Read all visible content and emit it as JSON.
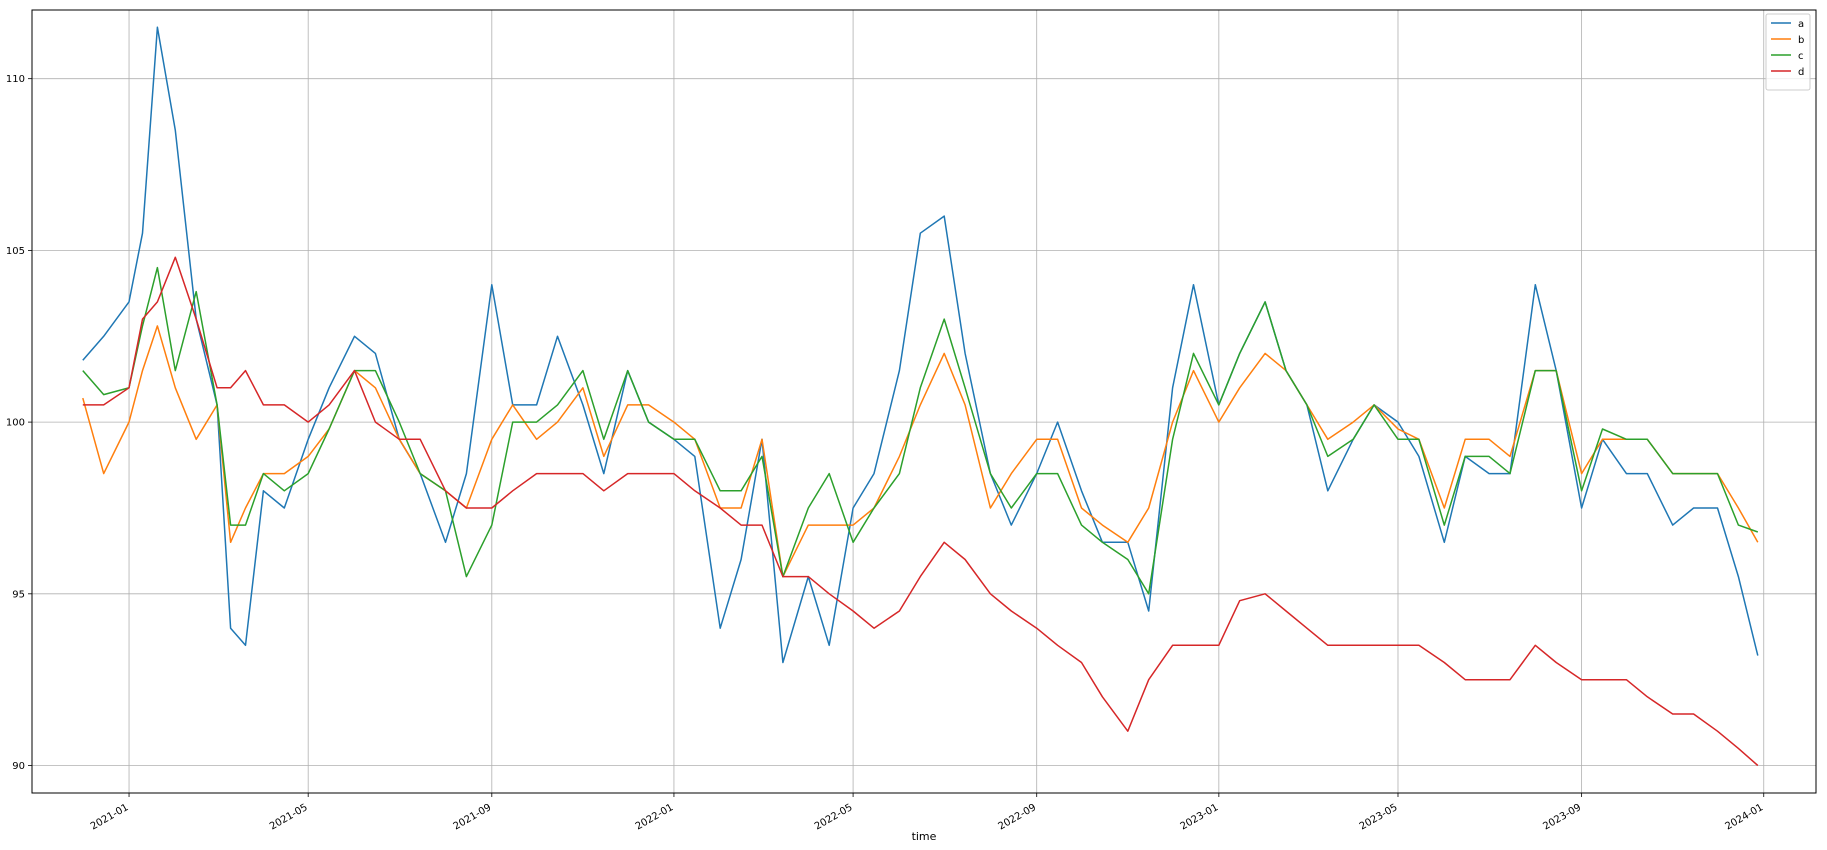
{
  "chart_data": {
    "type": "line",
    "title": "",
    "xlabel": "time",
    "ylabel": "",
    "ylim": [
      89.2,
      112.0
    ],
    "xlim": [
      "2020-10-28",
      "2024-02-05"
    ],
    "grid": true,
    "legend_position": "top-right",
    "x_tick_labels": [
      "2021-01",
      "2021-05",
      "2021-09",
      "2022-01",
      "2022-05",
      "2022-09",
      "2023-01",
      "2023-05",
      "2023-09",
      "2024-01"
    ],
    "y_tick_labels": [
      "90",
      "95",
      "100",
      "105",
      "110"
    ],
    "x": [
      "2020-12-01",
      "2020-12-15",
      "2021-01-01",
      "2021-01-10",
      "2021-01-20",
      "2021-02-01",
      "2021-02-15",
      "2021-03-01",
      "2021-03-10",
      "2021-03-20",
      "2021-04-01",
      "2021-04-15",
      "2021-05-01",
      "2021-05-15",
      "2021-06-01",
      "2021-06-15",
      "2021-07-01",
      "2021-07-15",
      "2021-08-01",
      "2021-08-15",
      "2021-09-01",
      "2021-09-15",
      "2021-10-01",
      "2021-10-15",
      "2021-11-01",
      "2021-11-15",
      "2021-12-01",
      "2021-12-15",
      "2022-01-01",
      "2022-01-15",
      "2022-02-01",
      "2022-02-15",
      "2022-03-01",
      "2022-03-15",
      "2022-04-01",
      "2022-04-15",
      "2022-05-01",
      "2022-05-15",
      "2022-06-01",
      "2022-06-15",
      "2022-07-01",
      "2022-07-15",
      "2022-08-01",
      "2022-08-15",
      "2022-09-01",
      "2022-09-15",
      "2022-10-01",
      "2022-10-15",
      "2022-11-01",
      "2022-11-15",
      "2022-12-01",
      "2022-12-15",
      "2023-01-01",
      "2023-01-15",
      "2023-02-01",
      "2023-02-15",
      "2023-03-01",
      "2023-03-15",
      "2023-04-01",
      "2023-04-15",
      "2023-05-01",
      "2023-05-15",
      "2023-06-01",
      "2023-06-15",
      "2023-07-01",
      "2023-07-15",
      "2023-08-01",
      "2023-08-15",
      "2023-09-01",
      "2023-09-15",
      "2023-10-01",
      "2023-10-15",
      "2023-11-01",
      "2023-11-15",
      "2023-12-01",
      "2023-12-15",
      "2023-12-28"
    ],
    "series": [
      {
        "name": "a",
        "color": "#1f77b4",
        "values": [
          101.8,
          102.5,
          103.5,
          105.5,
          111.5,
          108.5,
          103.0,
          100.5,
          94.0,
          93.5,
          98.0,
          97.5,
          99.5,
          101.0,
          102.5,
          102.0,
          99.5,
          98.5,
          96.5,
          98.5,
          104.0,
          100.5,
          100.5,
          102.5,
          100.5,
          98.5,
          101.5,
          100.0,
          99.5,
          99.0,
          94.0,
          96.0,
          99.5,
          93.0,
          95.5,
          93.5,
          97.5,
          98.5,
          101.5,
          105.5,
          106.0,
          102.0,
          98.5,
          97.0,
          98.5,
          100.0,
          98.0,
          96.5,
          96.5,
          94.5,
          101.0,
          104.0,
          100.5,
          102.0,
          103.5,
          101.5,
          100.5,
          98.0,
          99.5,
          100.5,
          100.0,
          99.0,
          96.5,
          99.0,
          98.5,
          98.5,
          104.0,
          101.5,
          97.5,
          99.5,
          98.5,
          98.5,
          97.0,
          97.5,
          97.5,
          95.5,
          93.2
        ]
      },
      {
        "name": "b",
        "color": "#ff7f0e",
        "values": [
          100.7,
          98.5,
          100.0,
          101.5,
          102.8,
          101.0,
          99.5,
          100.5,
          96.5,
          97.5,
          98.5,
          98.5,
          99.0,
          99.8,
          101.5,
          101.0,
          99.5,
          98.5,
          98.0,
          97.5,
          99.5,
          100.5,
          99.5,
          100.0,
          101.0,
          99.0,
          100.5,
          100.5,
          100.0,
          99.5,
          97.5,
          97.5,
          99.5,
          95.5,
          97.0,
          97.0,
          97.0,
          97.5,
          99.0,
          100.5,
          102.0,
          100.5,
          97.5,
          98.5,
          99.5,
          99.5,
          97.5,
          97.0,
          96.5,
          97.5,
          100.0,
          101.5,
          100.0,
          101.0,
          102.0,
          101.5,
          100.5,
          99.5,
          100.0,
          100.5,
          99.8,
          99.5,
          97.5,
          99.5,
          99.5,
          99.0,
          101.5,
          101.5,
          98.5,
          99.5,
          99.5,
          99.5,
          98.5,
          98.5,
          98.5,
          97.5,
          96.5
        ]
      },
      {
        "name": "c",
        "color": "#2ca02c",
        "values": [
          101.5,
          100.8,
          101.0,
          102.8,
          104.5,
          101.5,
          103.8,
          100.5,
          97.0,
          97.0,
          98.5,
          98.0,
          98.5,
          99.8,
          101.5,
          101.5,
          100.0,
          98.5,
          98.0,
          95.5,
          97.0,
          100.0,
          100.0,
          100.5,
          101.5,
          99.5,
          101.5,
          100.0,
          99.5,
          99.5,
          98.0,
          98.0,
          99.0,
          95.5,
          97.5,
          98.5,
          96.5,
          97.5,
          98.5,
          101.0,
          103.0,
          101.0,
          98.5,
          97.5,
          98.5,
          98.5,
          97.0,
          96.5,
          96.0,
          95.0,
          99.5,
          102.0,
          100.5,
          102.0,
          103.5,
          101.5,
          100.5,
          99.0,
          99.5,
          100.5,
          99.5,
          99.5,
          97.0,
          99.0,
          99.0,
          98.5,
          101.5,
          101.5,
          98.0,
          99.8,
          99.5,
          99.5,
          98.5,
          98.5,
          98.5,
          97.0,
          96.8
        ]
      },
      {
        "name": "d",
        "color": "#d62728",
        "values": [
          100.5,
          100.5,
          101.0,
          103.0,
          103.5,
          104.8,
          103.0,
          101.0,
          101.0,
          101.5,
          100.5,
          100.5,
          100.0,
          100.5,
          101.5,
          100.0,
          99.5,
          99.5,
          98.0,
          97.5,
          97.5,
          98.0,
          98.5,
          98.5,
          98.5,
          98.0,
          98.5,
          98.5,
          98.5,
          98.0,
          97.5,
          97.0,
          97.0,
          95.5,
          95.5,
          95.0,
          94.5,
          94.0,
          94.5,
          95.5,
          96.5,
          96.0,
          95.0,
          94.5,
          94.0,
          93.5,
          93.0,
          92.0,
          91.0,
          92.5,
          93.5,
          93.5,
          93.5,
          94.8,
          95.0,
          94.5,
          94.0,
          93.5,
          93.5,
          93.5,
          93.5,
          93.5,
          93.0,
          92.5,
          92.5,
          92.5,
          93.5,
          93.0,
          92.5,
          92.5,
          92.5,
          92.0,
          91.5,
          91.5,
          91.0,
          90.5,
          90.0
        ]
      }
    ]
  }
}
